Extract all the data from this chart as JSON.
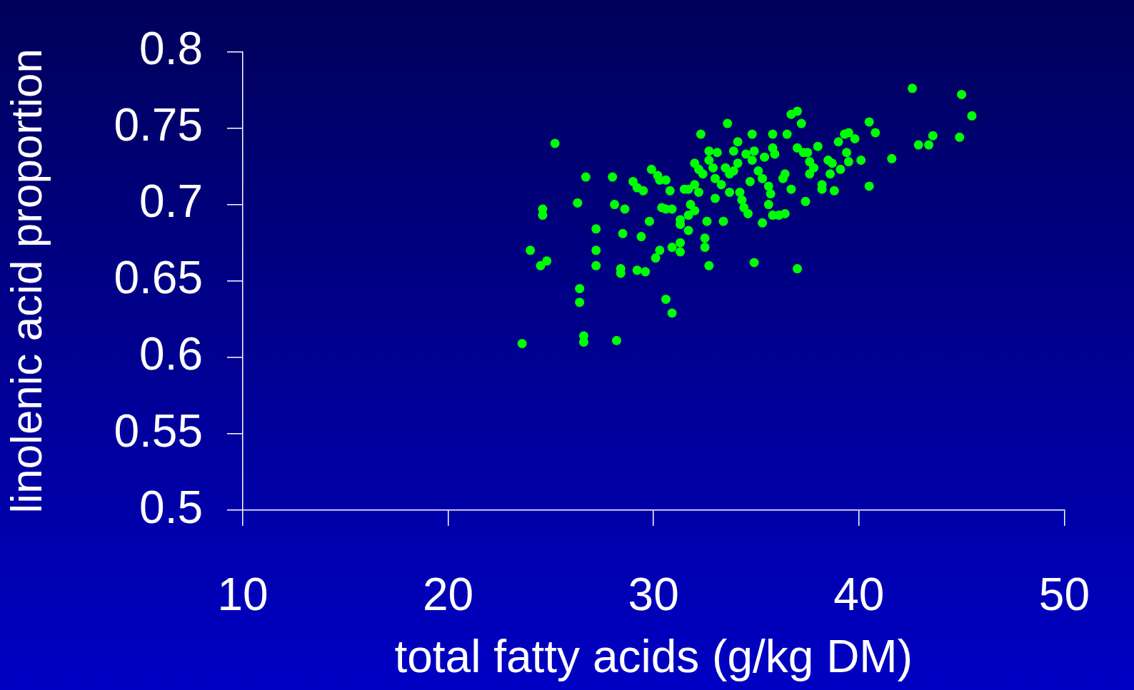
{
  "chart_data": {
    "type": "scatter",
    "xlabel": "total fatty acids (g/kg DM)",
    "ylabel": "linolenic acid proportion",
    "xlim": [
      10,
      50
    ],
    "xticks": [
      10,
      20,
      30,
      40,
      50
    ],
    "ylim": [
      0.5,
      0.8
    ],
    "yticks": [
      0.5,
      0.55,
      0.6,
      0.65,
      0.7,
      0.75,
      0.8
    ],
    "grid": false,
    "legend": false,
    "marker": "circle",
    "series": [
      {
        "color": "#00ff00",
        "x": [
          23.6,
          25.2,
          24.0,
          24.6,
          24.6,
          24.5,
          24.8,
          26.3,
          26.4,
          26.4,
          26.6,
          26.6,
          26.7,
          27.2,
          27.2,
          27.2,
          28.0,
          28.1,
          28.2,
          28.4,
          28.4,
          28.5,
          28.6,
          29.0,
          29.2,
          29.5,
          29.2,
          29.6,
          29.4,
          29.8,
          29.9,
          30.2,
          30.3,
          30.6,
          30.1,
          30.3,
          30.4,
          30.6,
          30.9,
          30.6,
          30.9,
          30.9,
          30.8,
          31.3,
          31.3,
          31.3,
          31.3,
          31.5,
          31.7,
          31.7,
          31.7,
          31.8,
          32.0,
          32.0,
          32.2,
          32.3,
          32.0,
          32.2,
          32.4,
          32.5,
          32.5,
          32.6,
          32.7,
          32.7,
          32.7,
          32.9,
          33.0,
          33.1,
          33.0,
          33.3,
          33.4,
          33.6,
          33.5,
          33.7,
          33.7,
          33.9,
          33.9,
          34.1,
          34.1,
          34.2,
          34.3,
          34.4,
          34.6,
          34.5,
          34.8,
          34.8,
          34.9,
          34.9,
          34.7,
          35.1,
          35.3,
          35.3,
          35.4,
          35.6,
          35.6,
          35.8,
          35.8,
          35.8,
          35.7,
          35.9,
          36.1,
          36.3,
          36.4,
          36.4,
          36.5,
          36.7,
          36.7,
          37.0,
          37.0,
          37.0,
          37.2,
          37.3,
          37.4,
          37.5,
          37.6,
          37.6,
          37.8,
          38.0,
          38.2,
          38.2,
          38.5,
          38.6,
          38.7,
          38.8,
          39.0,
          39.1,
          39.3,
          39.5,
          39.4,
          39.5,
          39.8,
          40.1,
          40.5,
          40.5,
          40.8,
          41.6,
          42.6,
          42.9,
          43.4,
          43.6,
          45.0,
          44.9,
          45.5
        ],
        "values": [
          0.609,
          0.74,
          0.67,
          0.693,
          0.697,
          0.66,
          0.663,
          0.701,
          0.645,
          0.636,
          0.614,
          0.61,
          0.718,
          0.684,
          0.67,
          0.66,
          0.718,
          0.7,
          0.611,
          0.658,
          0.655,
          0.681,
          0.697,
          0.715,
          0.711,
          0.709,
          0.657,
          0.656,
          0.679,
          0.689,
          0.723,
          0.719,
          0.716,
          0.716,
          0.665,
          0.67,
          0.698,
          0.697,
          0.697,
          0.638,
          0.629,
          0.672,
          0.709,
          0.69,
          0.687,
          0.675,
          0.669,
          0.71,
          0.71,
          0.683,
          0.693,
          0.7,
          0.696,
          0.727,
          0.723,
          0.746,
          0.713,
          0.708,
          0.72,
          0.678,
          0.672,
          0.689,
          0.66,
          0.735,
          0.729,
          0.724,
          0.704,
          0.734,
          0.717,
          0.713,
          0.689,
          0.753,
          0.724,
          0.72,
          0.708,
          0.735,
          0.722,
          0.741,
          0.727,
          0.708,
          0.703,
          0.698,
          0.694,
          0.733,
          0.729,
          0.746,
          0.662,
          0.735,
          0.715,
          0.722,
          0.717,
          0.688,
          0.731,
          0.712,
          0.7,
          0.746,
          0.737,
          0.693,
          0.707,
          0.733,
          0.693,
          0.717,
          0.72,
          0.694,
          0.746,
          0.71,
          0.759,
          0.761,
          0.658,
          0.737,
          0.753,
          0.734,
          0.702,
          0.734,
          0.728,
          0.72,
          0.724,
          0.738,
          0.71,
          0.713,
          0.729,
          0.72,
          0.727,
          0.709,
          0.741,
          0.723,
          0.746,
          0.747,
          0.734,
          0.728,
          0.743,
          0.729,
          0.754,
          0.712,
          0.747,
          0.73,
          0.776,
          0.739,
          0.739,
          0.745,
          0.772,
          0.744,
          0.758
        ]
      }
    ]
  }
}
